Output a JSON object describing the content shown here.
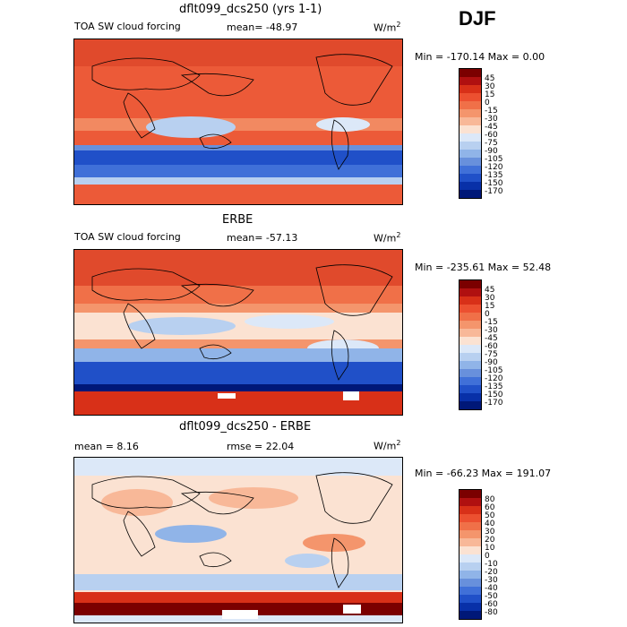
{
  "season": "DJF",
  "panels": [
    {
      "title": "dflt099_dcs250 (yrs 1-1)",
      "variable": "TOA SW cloud forcing",
      "stat1": "mean= -48.97",
      "stat2": "",
      "units": "W/m",
      "units_exp": "2",
      "minmax": "Min = -170.14  Max =   0.00",
      "levels": [
        "45",
        "30",
        "15",
        "0",
        "-15",
        "-30",
        "-45",
        "-60",
        "-75",
        "-90",
        "-105",
        "-120",
        "-135",
        "-150",
        "-170"
      ],
      "colors": [
        "#7b0000",
        "#b01010",
        "#d83018",
        "#ec5030",
        "#f07048",
        "#f4956c",
        "#f8b898",
        "#fbe2d2",
        "#dce8f8",
        "#b8d0f0",
        "#90b4e8",
        "#6890dc",
        "#4070d8",
        "#2050c8",
        "#0830a8",
        "#001878"
      ]
    },
    {
      "title": "ERBE",
      "variable": "TOA SW cloud forcing",
      "stat1": "mean= -57.13",
      "stat2": "",
      "units": "W/m",
      "units_exp": "2",
      "minmax": "Min = -235.61  Max =  52.48",
      "levels": [
        "45",
        "30",
        "15",
        "0",
        "-15",
        "-30",
        "-45",
        "-60",
        "-75",
        "-90",
        "-105",
        "-120",
        "-135",
        "-150",
        "-170"
      ],
      "colors": [
        "#7b0000",
        "#b01010",
        "#d83018",
        "#ec5030",
        "#f07048",
        "#f4956c",
        "#f8b898",
        "#fbe2d2",
        "#dce8f8",
        "#b8d0f0",
        "#90b4e8",
        "#6890dc",
        "#4070d8",
        "#2050c8",
        "#0830a8",
        "#001878"
      ]
    },
    {
      "title": "dflt099_dcs250 - ERBE",
      "variable": "",
      "stat1": "mean =   8.16",
      "stat2": "rmse =  22.04",
      "units": "W/m",
      "units_exp": "2",
      "minmax": "Min = -66.23 Max = 191.07",
      "levels": [
        "80",
        "60",
        "50",
        "40",
        "30",
        "20",
        "10",
        "0",
        "-10",
        "-20",
        "-30",
        "-40",
        "-50",
        "-60",
        "-80"
      ],
      "colors": [
        "#7b0000",
        "#b01010",
        "#d83018",
        "#ec5030",
        "#f07048",
        "#f4956c",
        "#f8b898",
        "#fbe2d2",
        "#dce8f8",
        "#b8d0f0",
        "#90b4e8",
        "#6890dc",
        "#4070d8",
        "#2050c8",
        "#0830a8",
        "#001878"
      ]
    }
  ],
  "chart_data": [
    {
      "type": "heatmap",
      "title": "dflt099_dcs250 (yrs 1-1)",
      "variable": "TOA SW cloud forcing",
      "units": "W/m2",
      "mean": -48.97,
      "min": -170.14,
      "max": 0.0,
      "contour_levels": [
        45,
        30,
        15,
        0,
        -15,
        -30,
        -45,
        -60,
        -75,
        -90,
        -105,
        -120,
        -135,
        -150,
        -170
      ]
    },
    {
      "type": "heatmap",
      "title": "ERBE",
      "variable": "TOA SW cloud forcing",
      "units": "W/m2",
      "mean": -57.13,
      "min": -235.61,
      "max": 52.48,
      "contour_levels": [
        45,
        30,
        15,
        0,
        -15,
        -30,
        -45,
        -60,
        -75,
        -90,
        -105,
        -120,
        -135,
        -150,
        -170
      ]
    },
    {
      "type": "heatmap",
      "title": "dflt099_dcs250 - ERBE",
      "units": "W/m2",
      "mean": 8.16,
      "rmse": 22.04,
      "min": -66.23,
      "max": 191.07,
      "contour_levels": [
        80,
        60,
        50,
        40,
        30,
        20,
        10,
        0,
        -10,
        -20,
        -30,
        -40,
        -50,
        -60,
        -80
      ]
    }
  ]
}
